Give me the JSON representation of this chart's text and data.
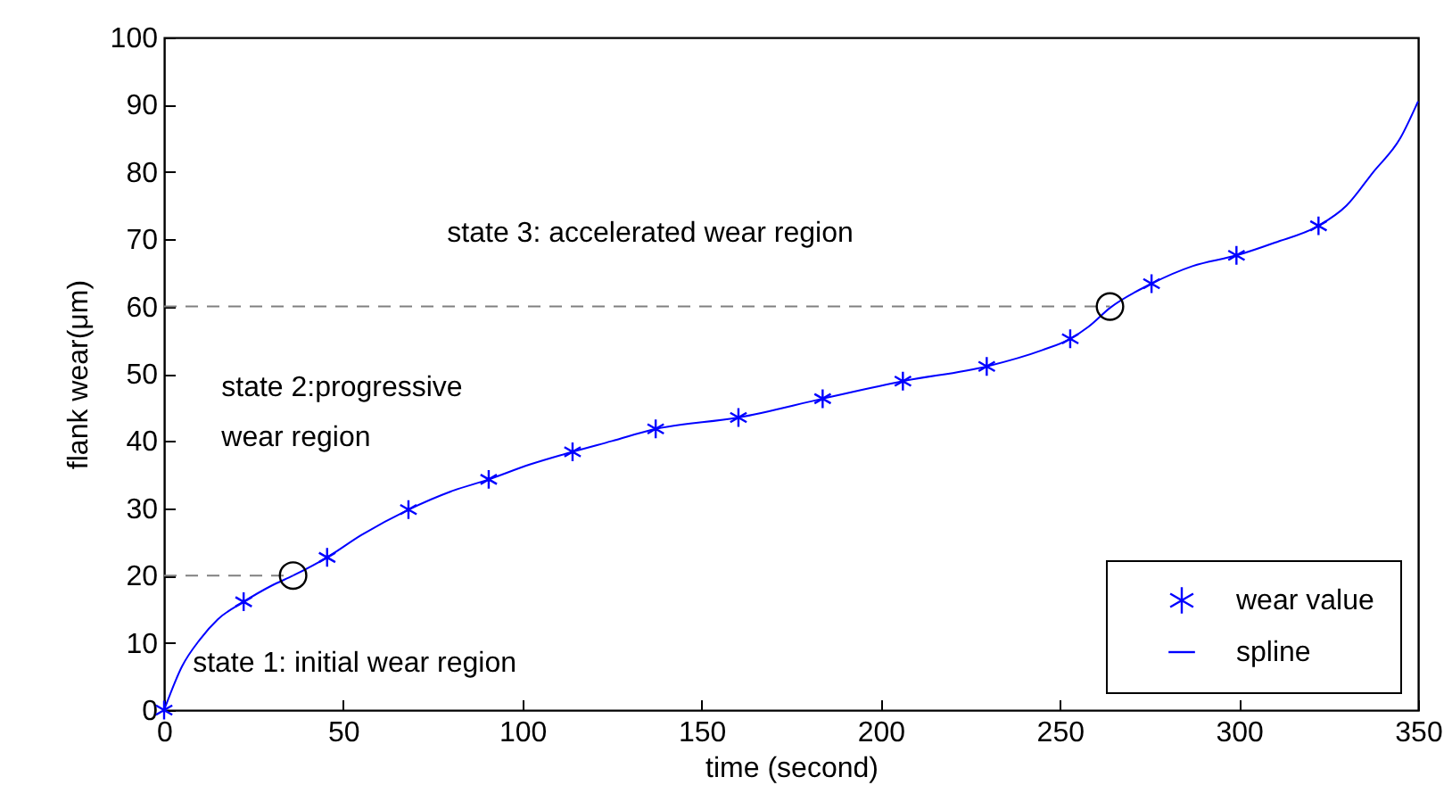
{
  "chart_data": {
    "type": "line",
    "xlabel": "time (second)",
    "ylabel": "flank wear(μm)",
    "xlim": [
      0,
      350
    ],
    "xticks": [
      0,
      50,
      100,
      150,
      200,
      250,
      300,
      350
    ],
    "ylim": [
      0,
      100
    ],
    "yticks": [
      0,
      10,
      20,
      30,
      40,
      50,
      60,
      70,
      80,
      90,
      100
    ],
    "grid": false,
    "legend": "bottom right",
    "annotations": [
      "state 3: accelerated wear region",
      "state 2:progressive\nwear region",
      "state 1: initial wear region"
    ],
    "series": [
      {
        "name": "wear value",
        "type": "scatter",
        "marker": "cross",
        "color": "#0000ff",
        "x": [
          0,
          22.2,
          45.5,
          68.2,
          90.6,
          114,
          137.2,
          160.3,
          183.8,
          206.2,
          229.6,
          252.9,
          275.6,
          299.3,
          322.2
        ],
        "values": [
          0,
          16.1,
          22.7,
          29.8,
          34.3,
          38.4,
          41.8,
          43.5,
          46.3,
          48.9,
          51.1,
          55.2,
          63.4,
          67.6,
          72
        ]
      },
      {
        "name": "spline",
        "line_style": "solid",
        "color": "#0000ff",
        "x": [
          0,
          5,
          10,
          15,
          22.2,
          30,
          36,
          45.5,
          55,
          68.2,
          80,
          90.6,
          102,
          114,
          125,
          137.2,
          160.3,
          183.8,
          206.2,
          229.6,
          245,
          252.9,
          258,
          264,
          275.6,
          287,
          299.3,
          310,
          322.2,
          330,
          337.5,
          345,
          350
        ],
        "values": [
          0,
          6.5,
          10.5,
          13.5,
          16.1,
          18.5,
          20,
          22.7,
          26,
          29.8,
          32.5,
          34.3,
          36.5,
          38.4,
          40,
          41.8,
          43.5,
          46.3,
          48.9,
          51.1,
          53.5,
          55.2,
          57,
          59.8,
          63.4,
          66,
          67.6,
          69.5,
          72,
          75,
          80,
          85,
          90.5
        ]
      },
      {
        "type": "scatter",
        "marker": "circle",
        "color": "#000000",
        "x": [
          36,
          264
        ],
        "values": [
          20,
          60
        ]
      },
      {
        "line_style": "dashed",
        "color": "#808080",
        "x": [
          0,
          36
        ],
        "values": [
          20,
          20
        ]
      },
      {
        "line_style": "dashed",
        "color": "#808080",
        "x": [
          0,
          264
        ],
        "values": [
          60,
          60
        ]
      }
    ]
  }
}
